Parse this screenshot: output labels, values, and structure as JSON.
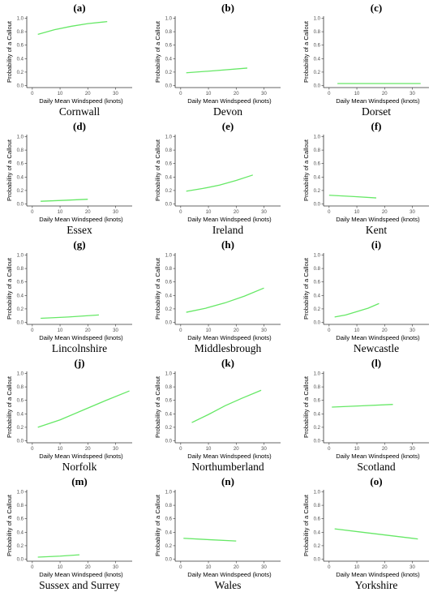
{
  "chart_data": [
    {
      "type": "line",
      "letter": "(a)",
      "region": "Cornwall",
      "xlabel": "Daily Mean Windspeed (knots)",
      "ylabel": "Probability of a Callout",
      "xlim": [
        -2,
        36
      ],
      "ylim": [
        -0.03,
        1.03
      ],
      "xticks": [
        "0",
        "10",
        "20",
        "30"
      ],
      "yticks": [
        "0.0",
        "0.2",
        "0.4",
        "0.6",
        "0.8",
        "1.0"
      ],
      "color": "#66e866",
      "x": [
        2,
        8,
        14,
        20,
        27
      ],
      "y": [
        0.76,
        0.83,
        0.88,
        0.92,
        0.95
      ]
    },
    {
      "type": "line",
      "letter": "(b)",
      "region": "Devon",
      "xlabel": "Daily Mean Windspeed (knots)",
      "ylabel": "Probability of a Callout",
      "xlim": [
        -2,
        36
      ],
      "ylim": [
        -0.03,
        1.03
      ],
      "xticks": [
        "0",
        "10",
        "20",
        "30"
      ],
      "yticks": [
        "0.0",
        "0.2",
        "0.4",
        "0.6",
        "0.8",
        "1.0"
      ],
      "color": "#66e866",
      "x": [
        2,
        12,
        24
      ],
      "y": [
        0.19,
        0.22,
        0.26
      ]
    },
    {
      "type": "line",
      "letter": "(c)",
      "region": "Dorset",
      "xlabel": "Daily Mean Windspeed (knots)",
      "ylabel": "Probability of a Callout",
      "xlim": [
        -2,
        36
      ],
      "ylim": [
        -0.03,
        1.03
      ],
      "xticks": [
        "0",
        "10",
        "20",
        "30"
      ],
      "yticks": [
        "0.0",
        "0.2",
        "0.4",
        "0.6",
        "0.8",
        "1.0"
      ],
      "color": "#66e866",
      "x": [
        3,
        18,
        33
      ],
      "y": [
        0.03,
        0.03,
        0.03
      ]
    },
    {
      "type": "line",
      "letter": "(d)",
      "region": "Essex",
      "xlabel": "Daily Mean Windspeed (knots)",
      "ylabel": "Probability of a Callout",
      "xlim": [
        -2,
        36
      ],
      "ylim": [
        -0.03,
        1.03
      ],
      "xticks": [
        "0",
        "10",
        "20",
        "30"
      ],
      "yticks": [
        "0.0",
        "0.2",
        "0.4",
        "0.6",
        "0.8",
        "1.0"
      ],
      "color": "#66e866",
      "x": [
        3,
        12,
        20
      ],
      "y": [
        0.04,
        0.055,
        0.07
      ]
    },
    {
      "type": "line",
      "letter": "(e)",
      "region": "Ireland",
      "xlabel": "Daily Mean Windspeed (knots)",
      "ylabel": "Probability of a Callout",
      "xlim": [
        -2,
        36
      ],
      "ylim": [
        -0.03,
        1.03
      ],
      "xticks": [
        "0",
        "10",
        "20",
        "30"
      ],
      "yticks": [
        "0.0",
        "0.2",
        "0.4",
        "0.6",
        "0.8",
        "1.0"
      ],
      "color": "#66e866",
      "x": [
        2,
        8,
        14,
        20,
        26
      ],
      "y": [
        0.19,
        0.23,
        0.28,
        0.35,
        0.43
      ]
    },
    {
      "type": "line",
      "letter": "(f)",
      "region": "Kent",
      "xlabel": "Daily Mean Windspeed (knots)",
      "ylabel": "Probability of a Callout",
      "xlim": [
        -2,
        36
      ],
      "ylim": [
        -0.03,
        1.03
      ],
      "xticks": [
        "0",
        "10",
        "20",
        "30"
      ],
      "yticks": [
        "0.0",
        "0.2",
        "0.4",
        "0.6",
        "0.8",
        "1.0"
      ],
      "color": "#66e866",
      "x": [
        0,
        9,
        17
      ],
      "y": [
        0.13,
        0.11,
        0.09
      ]
    },
    {
      "type": "line",
      "letter": "(g)",
      "region": "Lincolnshire",
      "xlabel": "Daily Mean Windspeed (knots)",
      "ylabel": "Probability of a Callout",
      "xlim": [
        -2,
        36
      ],
      "ylim": [
        -0.03,
        1.03
      ],
      "xticks": [
        "0",
        "10",
        "20",
        "30"
      ],
      "yticks": [
        "0.0",
        "0.2",
        "0.4",
        "0.6",
        "0.8",
        "1.0"
      ],
      "color": "#66e866",
      "x": [
        3,
        13,
        24
      ],
      "y": [
        0.06,
        0.08,
        0.11
      ]
    },
    {
      "type": "line",
      "letter": "(h)",
      "region": "Middlesbrough",
      "xlabel": "Daily Mean Windspeed (knots)",
      "ylabel": "Probability of a Callout",
      "xlim": [
        -2,
        36
      ],
      "ylim": [
        -0.03,
        1.03
      ],
      "xticks": [
        "0",
        "10",
        "20",
        "30"
      ],
      "yticks": [
        "0.0",
        "0.2",
        "0.4",
        "0.6",
        "0.8",
        "1.0"
      ],
      "color": "#66e866",
      "x": [
        2,
        9,
        16,
        23,
        30
      ],
      "y": [
        0.15,
        0.21,
        0.29,
        0.39,
        0.51
      ]
    },
    {
      "type": "line",
      "letter": "(i)",
      "region": "Newcastle",
      "xlabel": "Daily Mean Windspeed (knots)",
      "ylabel": "Probability of a Callout",
      "xlim": [
        -2,
        36
      ],
      "ylim": [
        -0.03,
        1.03
      ],
      "xticks": [
        "0",
        "10",
        "20",
        "30"
      ],
      "yticks": [
        "0.0",
        "0.2",
        "0.4",
        "0.6",
        "0.8",
        "1.0"
      ],
      "color": "#66e866",
      "x": [
        2,
        6,
        10,
        14,
        18
      ],
      "y": [
        0.08,
        0.11,
        0.16,
        0.21,
        0.28
      ]
    },
    {
      "type": "line",
      "letter": "(j)",
      "region": "Norfolk",
      "xlabel": "Daily Mean Windspeed (knots)",
      "ylabel": "Probability of a Callout",
      "xlim": [
        -2,
        36
      ],
      "ylim": [
        -0.03,
        1.03
      ],
      "xticks": [
        "0",
        "10",
        "20",
        "30"
      ],
      "yticks": [
        "0.0",
        "0.2",
        "0.4",
        "0.6",
        "0.8",
        "1.0"
      ],
      "color": "#66e866",
      "x": [
        2,
        10,
        18,
        26,
        35
      ],
      "y": [
        0.2,
        0.31,
        0.45,
        0.59,
        0.74
      ]
    },
    {
      "type": "line",
      "letter": "(k)",
      "region": "Northumberland",
      "xlabel": "Daily Mean Windspeed (knots)",
      "ylabel": "Probability of a Callout",
      "xlim": [
        -2,
        36
      ],
      "ylim": [
        -0.03,
        1.03
      ],
      "xticks": [
        "0",
        "10",
        "20",
        "30"
      ],
      "yticks": [
        "0.0",
        "0.2",
        "0.4",
        "0.6",
        "0.8",
        "1.0"
      ],
      "color": "#66e866",
      "x": [
        4,
        10,
        16,
        22,
        29
      ],
      "y": [
        0.27,
        0.39,
        0.52,
        0.63,
        0.75
      ]
    },
    {
      "type": "line",
      "letter": "(l)",
      "region": "Scotland",
      "xlabel": "Daily Mean Windspeed (knots)",
      "ylabel": "Probability of a Callout",
      "xlim": [
        -2,
        36
      ],
      "ylim": [
        -0.03,
        1.03
      ],
      "xticks": [
        "0",
        "10",
        "20",
        "30"
      ],
      "yticks": [
        "0.0",
        "0.2",
        "0.4",
        "0.6",
        "0.8",
        "1.0"
      ],
      "color": "#66e866",
      "x": [
        1,
        12,
        23
      ],
      "y": [
        0.5,
        0.52,
        0.54
      ]
    },
    {
      "type": "line",
      "letter": "(m)",
      "region": "Sussex and Surrey",
      "xlabel": "Daily Mean Windspeed (knots)",
      "ylabel": "Probability of a Callout",
      "xlim": [
        -2,
        36
      ],
      "ylim": [
        -0.03,
        1.03
      ],
      "xticks": [
        "0",
        "10",
        "20",
        "30"
      ],
      "yticks": [
        "0.0",
        "0.2",
        "0.4",
        "0.6",
        "0.8",
        "1.0"
      ],
      "color": "#66e866",
      "x": [
        2,
        10,
        17
      ],
      "y": [
        0.03,
        0.045,
        0.065
      ]
    },
    {
      "type": "line",
      "letter": "(n)",
      "region": "Wales",
      "xlabel": "Daily Mean Windspeed (knots)",
      "ylabel": "Probability of a Callout",
      "xlim": [
        -2,
        36
      ],
      "ylim": [
        -0.03,
        1.03
      ],
      "xticks": [
        "0",
        "10",
        "20",
        "30"
      ],
      "yticks": [
        "0.0",
        "0.2",
        "0.4",
        "0.6",
        "0.8",
        "1.0"
      ],
      "color": "#66e866",
      "x": [
        1,
        10,
        20
      ],
      "y": [
        0.31,
        0.29,
        0.27
      ]
    },
    {
      "type": "line",
      "letter": "(o)",
      "region": "Yorkshire",
      "xlabel": "Daily Mean Windspeed (knots)",
      "ylabel": "Probability of a Callout",
      "xlim": [
        -2,
        36
      ],
      "ylim": [
        -0.03,
        1.03
      ],
      "xticks": [
        "0",
        "10",
        "20",
        "30"
      ],
      "yticks": [
        "0.0",
        "0.2",
        "0.4",
        "0.6",
        "0.8",
        "1.0"
      ],
      "color": "#66e866",
      "x": [
        2,
        12,
        22,
        32
      ],
      "y": [
        0.45,
        0.4,
        0.35,
        0.3
      ]
    }
  ]
}
